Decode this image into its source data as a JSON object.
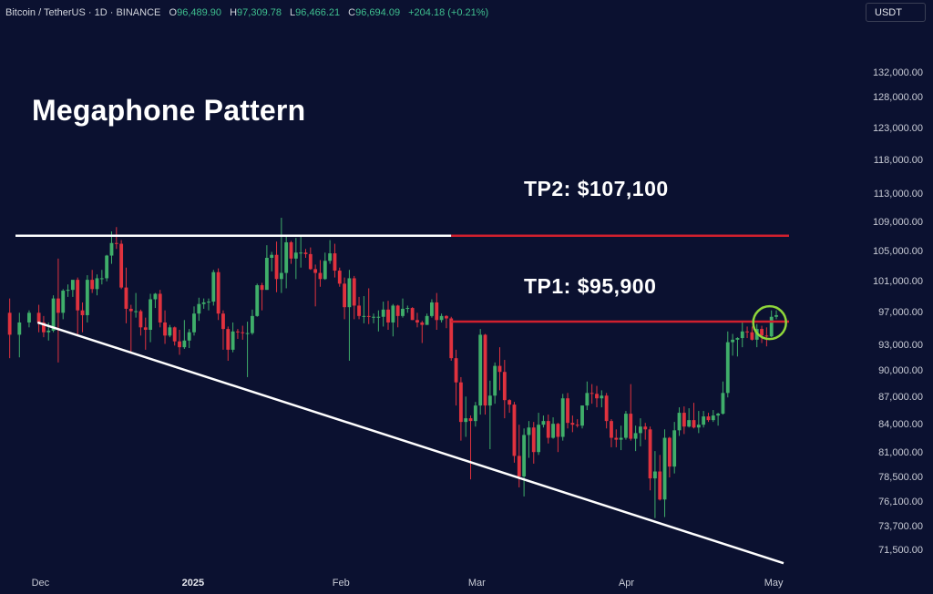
{
  "header": {
    "symbol": "Bitcoin / TetherUS · 1D · BINANCE",
    "open_key": "O",
    "open": "96,489.90",
    "high_key": "H",
    "high": "97,309.78",
    "low_key": "L",
    "low": "96,466.21",
    "close_key": "C",
    "close": "96,694.09",
    "change": "+204.18 (+0.21%)"
  },
  "currency": "USDT",
  "annotations": {
    "pattern": "Megaphone Pattern",
    "tp2": "TP2: $107,100",
    "tp1": "TP1: $95,900"
  },
  "colors": {
    "background": "#0b1130",
    "up": "#3fae6a",
    "down": "#e0323e",
    "trendline": "#ffffff",
    "target_line": "#d0202e",
    "highlight_circle": "#8fd63a"
  },
  "chart_data": {
    "type": "candlestick",
    "title": "Megaphone Pattern",
    "x_ticks": [
      "Dec",
      "2025",
      "Feb",
      "Mar",
      "Apr",
      "May"
    ],
    "y_ticks": [
      "132,000.00",
      "128,000.00",
      "123,000.00",
      "118,000.00",
      "113,000.00",
      "109,000.00",
      "105,000.00",
      "101,000.00",
      "97,000.00",
      "93,000.00",
      "90,000.00",
      "87,000.00",
      "84,000.00",
      "81,000.00",
      "78,500.00",
      "76,100.00",
      "73,700.00",
      "71,500.00"
    ],
    "y_scale": "log",
    "ylim": [
      69500,
      140000
    ],
    "xlim": [
      "2024-11-23",
      "2025-05-05"
    ],
    "candles": [
      [
        "2024-11-25",
        97000,
        98800,
        91500,
        94300
      ],
      [
        "2024-11-27",
        94300,
        97000,
        91600,
        95800
      ],
      [
        "2024-11-29",
        95800,
        97300,
        95200,
        97000
      ],
      [
        "2024-12-01",
        97000,
        98000,
        94600,
        95800
      ],
      [
        "2024-12-02",
        95800,
        96600,
        94000,
        94600
      ],
      [
        "2024-12-03",
        94600,
        95800,
        93600,
        94800
      ],
      [
        "2024-12-04",
        94800,
        99200,
        94600,
        98800
      ],
      [
        "2024-12-05",
        98800,
        104000,
        91000,
        97000
      ],
      [
        "2024-12-06",
        97000,
        100000,
        96200,
        99800
      ],
      [
        "2024-12-07",
        99800,
        100600,
        99000,
        99900
      ],
      [
        "2024-12-08",
        99900,
        101000,
        99000,
        101200
      ],
      [
        "2024-12-09",
        101200,
        101500,
        94100,
        97300
      ],
      [
        "2024-12-10",
        97300,
        98300,
        94600,
        96700
      ],
      [
        "2024-12-11",
        96700,
        101800,
        95800,
        101200
      ],
      [
        "2024-12-12",
        101200,
        102500,
        99500,
        100000
      ],
      [
        "2024-12-13",
        100000,
        101900,
        99200,
        101400
      ],
      [
        "2024-12-14",
        101400,
        102500,
        100600,
        101400
      ],
      [
        "2024-12-15",
        101400,
        104500,
        101000,
        104400
      ],
      [
        "2024-12-16",
        104400,
        107700,
        103300,
        106100
      ],
      [
        "2024-12-17",
        106100,
        108300,
        105300,
        106000
      ],
      [
        "2024-12-18",
        106000,
        106500,
        100000,
        100200
      ],
      [
        "2024-12-19",
        100200,
        102800,
        95700,
        97500
      ],
      [
        "2024-12-20",
        97500,
        98000,
        92200,
        97200
      ],
      [
        "2024-12-21",
        97200,
        99500,
        96400,
        97200
      ],
      [
        "2024-12-22",
        97200,
        97400,
        94200,
        95200
      ],
      [
        "2024-12-23",
        95200,
        96400,
        92500,
        94900
      ],
      [
        "2024-12-24",
        94900,
        99400,
        93400,
        98700
      ],
      [
        "2024-12-25",
        98700,
        99500,
        97600,
        99400
      ],
      [
        "2024-12-26",
        99400,
        99900,
        95200,
        95800
      ],
      [
        "2024-12-27",
        95800,
        97300,
        93200,
        94200
      ],
      [
        "2024-12-28",
        94200,
        95500,
        94000,
        95200
      ],
      [
        "2024-12-29",
        95200,
        95300,
        93000,
        93500
      ],
      [
        "2024-12-30",
        93500,
        94900,
        91900,
        92800
      ],
      [
        "2024-12-31",
        92800,
        96100,
        92600,
        93600
      ],
      [
        "2025-01-01",
        93600,
        95000,
        92700,
        94600
      ],
      [
        "2025-01-02",
        94600,
        97800,
        94200,
        96900
      ],
      [
        "2025-01-03",
        96900,
        98900,
        96000,
        98100
      ],
      [
        "2025-01-04",
        98100,
        98800,
        97500,
        98300
      ],
      [
        "2025-01-05",
        98300,
        98800,
        97300,
        98400
      ],
      [
        "2025-01-06",
        98400,
        102500,
        97900,
        102200
      ],
      [
        "2025-01-07",
        102200,
        102700,
        96100,
        96900
      ],
      [
        "2025-01-08",
        96900,
        97300,
        92500,
        95000
      ],
      [
        "2025-01-09",
        95000,
        95300,
        91200,
        92500
      ],
      [
        "2025-01-10",
        92500,
        95800,
        92200,
        94700
      ],
      [
        "2025-01-11",
        94700,
        95000,
        93800,
        94600
      ],
      [
        "2025-01-12",
        94600,
        95400,
        93700,
        94500
      ],
      [
        "2025-01-13",
        94500,
        95900,
        89300,
        94500
      ],
      [
        "2025-01-14",
        94500,
        97400,
        94300,
        96600
      ],
      [
        "2025-01-15",
        96600,
        100700,
        96500,
        100500
      ],
      [
        "2025-01-16",
        100500,
        100800,
        97300,
        99900
      ],
      [
        "2025-01-17",
        99900,
        105800,
        99900,
        104100
      ],
      [
        "2025-01-18",
        104100,
        104900,
        102300,
        104500
      ],
      [
        "2025-01-19",
        104500,
        106300,
        99600,
        101300
      ],
      [
        "2025-01-20",
        101300,
        109600,
        99500,
        102100
      ],
      [
        "2025-01-21",
        102100,
        107200,
        100100,
        106200
      ],
      [
        "2025-01-22",
        106200,
        106400,
        103300,
        104000
      ],
      [
        "2025-01-23",
        104000,
        106800,
        101300,
        104800
      ],
      [
        "2025-01-24",
        104800,
        107100,
        102800,
        104800
      ],
      [
        "2025-01-25",
        104800,
        105300,
        104100,
        104600
      ],
      [
        "2025-01-26",
        104600,
        105500,
        102500,
        102600
      ],
      [
        "2025-01-27",
        102600,
        103200,
        97800,
        102100
      ],
      [
        "2025-01-28",
        102100,
        103800,
        100300,
        101300
      ],
      [
        "2025-01-29",
        101300,
        104800,
        101200,
        103700
      ],
      [
        "2025-01-30",
        103700,
        106500,
        103300,
        104700
      ],
      [
        "2025-01-31",
        104700,
        106000,
        101500,
        102400
      ],
      [
        "2025-02-01",
        102400,
        102800,
        100300,
        100700
      ],
      [
        "2025-02-02",
        100700,
        101500,
        96200,
        97700
      ],
      [
        "2025-02-03",
        97700,
        102500,
        91200,
        101400
      ],
      [
        "2025-02-04",
        101400,
        101700,
        96200,
        97900
      ],
      [
        "2025-02-05",
        97900,
        99000,
        96200,
        96600
      ],
      [
        "2025-02-06",
        96600,
        99100,
        95700,
        96600
      ],
      [
        "2025-02-07",
        96600,
        100100,
        95600,
        96500
      ],
      [
        "2025-02-08",
        96500,
        96900,
        95700,
        96500
      ],
      [
        "2025-02-09",
        96500,
        97300,
        94700,
        96500
      ],
      [
        "2025-02-10",
        96500,
        98400,
        95300,
        97400
      ],
      [
        "2025-02-11",
        97400,
        98500,
        94900,
        95800
      ],
      [
        "2025-02-12",
        95800,
        98100,
        94100,
        97900
      ],
      [
        "2025-02-13",
        97900,
        98000,
        95200,
        96600
      ],
      [
        "2025-02-14",
        96600,
        98800,
        96400,
        97500
      ],
      [
        "2025-02-15",
        97500,
        97900,
        97000,
        97600
      ],
      [
        "2025-02-16",
        97600,
        97700,
        96100,
        96100
      ],
      [
        "2025-02-17",
        96100,
        97000,
        95200,
        95800
      ],
      [
        "2025-02-18",
        95800,
        96000,
        93300,
        95500
      ],
      [
        "2025-02-19",
        95500,
        96900,
        95500,
        96600
      ],
      [
        "2025-02-20",
        96600,
        98700,
        96400,
        98300
      ],
      [
        "2025-02-21",
        98300,
        99500,
        94900,
        96100
      ],
      [
        "2025-02-22",
        96100,
        96900,
        95800,
        96600
      ],
      [
        "2025-02-23",
        96600,
        96700,
        95100,
        96300
      ],
      [
        "2025-02-24",
        96300,
        96500,
        91200,
        91500
      ],
      [
        "2025-02-25",
        91500,
        92500,
        86100,
        88700
      ],
      [
        "2025-02-26",
        88700,
        89300,
        82300,
        84300
      ],
      [
        "2025-02-27",
        84300,
        87100,
        82700,
        84700
      ],
      [
        "2025-02-28",
        84700,
        85000,
        78300,
        84400
      ],
      [
        "2025-03-01",
        84400,
        86500,
        83800,
        86100
      ],
      [
        "2025-03-02",
        86100,
        95000,
        85100,
        94300
      ],
      [
        "2025-03-03",
        94300,
        94400,
        85100,
        86100
      ],
      [
        "2025-03-04",
        86100,
        88900,
        81400,
        87200
      ],
      [
        "2025-03-05",
        87200,
        91000,
        86300,
        90600
      ],
      [
        "2025-03-06",
        90600,
        92800,
        87800,
        89900
      ],
      [
        "2025-03-07",
        89900,
        91300,
        84700,
        86700
      ],
      [
        "2025-03-08",
        86700,
        86800,
        85300,
        86200
      ],
      [
        "2025-03-09",
        86200,
        86500,
        80000,
        80700
      ],
      [
        "2025-03-10",
        80700,
        84000,
        77500,
        78600
      ],
      [
        "2025-03-11",
        78600,
        83600,
        76600,
        82900
      ],
      [
        "2025-03-12",
        82900,
        84400,
        80500,
        83700
      ],
      [
        "2025-03-13",
        83700,
        84300,
        79900,
        81100
      ],
      [
        "2025-03-14",
        81100,
        85300,
        80800,
        84000
      ],
      [
        "2025-03-15",
        84000,
        85000,
        83700,
        84400
      ],
      [
        "2025-03-16",
        84400,
        85100,
        82000,
        82600
      ],
      [
        "2025-03-17",
        82600,
        84800,
        82500,
        84100
      ],
      [
        "2025-03-18",
        84100,
        84200,
        81100,
        82700
      ],
      [
        "2025-03-19",
        82700,
        87400,
        82300,
        86900
      ],
      [
        "2025-03-20",
        86900,
        87500,
        83600,
        84200
      ],
      [
        "2025-03-21",
        84200,
        85000,
        83200,
        84000
      ],
      [
        "2025-03-22",
        84000,
        84600,
        83700,
        83900
      ],
      [
        "2025-03-23",
        83900,
        86100,
        83600,
        86100
      ],
      [
        "2025-03-24",
        86100,
        88800,
        85600,
        87500
      ],
      [
        "2025-03-25",
        87500,
        88500,
        86300,
        87400
      ],
      [
        "2025-03-26",
        87400,
        88300,
        85900,
        86900
      ],
      [
        "2025-03-27",
        86900,
        87800,
        85900,
        87200
      ],
      [
        "2025-03-28",
        87200,
        87500,
        83600,
        84400
      ],
      [
        "2025-03-29",
        84400,
        84600,
        81600,
        82600
      ],
      [
        "2025-03-30",
        82600,
        83500,
        81600,
        82400
      ],
      [
        "2025-03-31",
        82400,
        83900,
        81300,
        82600
      ],
      [
        "2025-04-01",
        82600,
        85500,
        82400,
        85200
      ],
      [
        "2025-04-02",
        85200,
        88500,
        82300,
        82500
      ],
      [
        "2025-04-03",
        82500,
        83900,
        81200,
        83100
      ],
      [
        "2025-04-04",
        83100,
        84700,
        81700,
        83800
      ],
      [
        "2025-04-05",
        83800,
        84200,
        82400,
        83500
      ],
      [
        "2025-04-06",
        83500,
        83800,
        77200,
        78400
      ],
      [
        "2025-04-07",
        78400,
        81200,
        74500,
        79100
      ],
      [
        "2025-04-08",
        79100,
        80800,
        76200,
        76300
      ],
      [
        "2025-04-09",
        76300,
        83500,
        74600,
        82600
      ],
      [
        "2025-04-10",
        82600,
        82700,
        78500,
        79600
      ],
      [
        "2025-04-11",
        79600,
        84300,
        78900,
        83400
      ],
      [
        "2025-04-12",
        83400,
        85900,
        82800,
        85300
      ],
      [
        "2025-04-13",
        85300,
        86000,
        83000,
        83800
      ],
      [
        "2025-04-14",
        83800,
        85800,
        83700,
        84500
      ],
      [
        "2025-04-15",
        84500,
        86400,
        83600,
        83700
      ],
      [
        "2025-04-16",
        83700,
        85500,
        83100,
        84000
      ],
      [
        "2025-04-17",
        84000,
        85500,
        83700,
        84900
      ],
      [
        "2025-04-18",
        84900,
        85300,
        84300,
        84500
      ],
      [
        "2025-04-19",
        84500,
        85600,
        84300,
        85000
      ],
      [
        "2025-04-20",
        85000,
        85300,
        83900,
        85200
      ],
      [
        "2025-04-21",
        85200,
        88800,
        85100,
        87500
      ],
      [
        "2025-04-22",
        87500,
        94700,
        87000,
        93400
      ],
      [
        "2025-04-23",
        93400,
        94400,
        91800,
        93700
      ],
      [
        "2025-04-24",
        93700,
        94000,
        91700,
        93900
      ],
      [
        "2025-04-25",
        93900,
        95800,
        92800,
        94700
      ],
      [
        "2025-04-26",
        94700,
        95300,
        93900,
        94600
      ],
      [
        "2025-04-27",
        94600,
        95300,
        93600,
        93700
      ],
      [
        "2025-04-28",
        93700,
        95600,
        92800,
        95000
      ],
      [
        "2025-04-29",
        95000,
        95400,
        93300,
        94200
      ],
      [
        "2025-04-30",
        94200,
        95200,
        92900,
        94100
      ],
      [
        "2025-05-01",
        94100,
        97300,
        94000,
        96500
      ],
      [
        "2025-05-02",
        96500,
        97300,
        96200,
        96700
      ]
    ],
    "resistance_line": {
      "from": [
        "2024-11-23",
        107100
      ],
      "to": [
        "2025-02-24",
        107100
      ]
    },
    "support_line": {
      "from": [
        "2024-11-27",
        95800
      ],
      "to": [
        "2025-05-05",
        70300
      ]
    },
    "targets": [
      {
        "label": "TP2: $107,100",
        "price": 107100,
        "from": "2025-02-24",
        "to": "2025-05-05"
      },
      {
        "label": "TP1: $95,900",
        "price": 95900,
        "from": "2025-02-24",
        "to": "2025-05-05"
      }
    ],
    "highlight": {
      "date": "2025-05-01",
      "price": 96000
    }
  }
}
